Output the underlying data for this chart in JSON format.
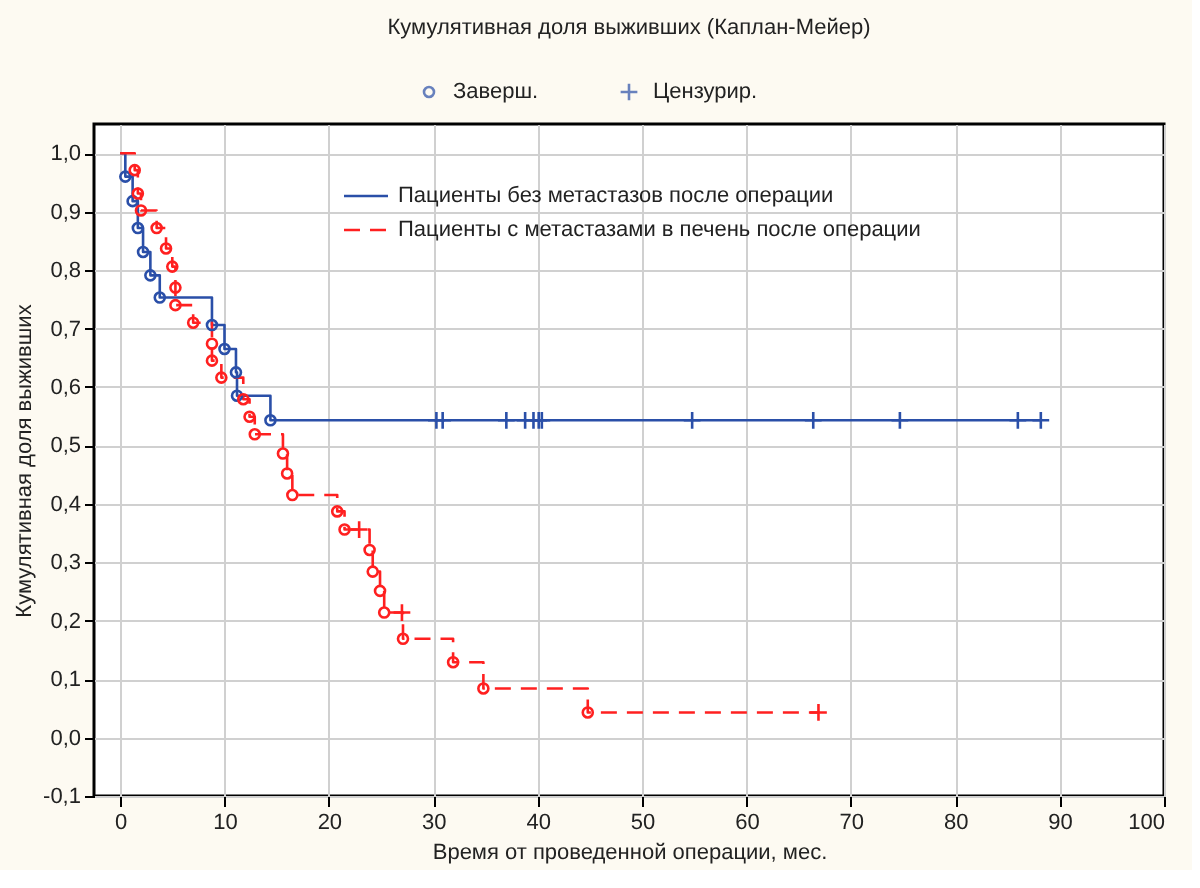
{
  "chart_data": {
    "type": "step",
    "title": "Кумулятивная доля выживших (Каплан-Мейер)",
    "xlabel": "Время от проведенной операции, мес.",
    "ylabel": "Кумулятивная доля выживших",
    "xlim": [
      -2.5,
      100
    ],
    "xticks": [
      0,
      10,
      20,
      30,
      40,
      50,
      60,
      70,
      80,
      90,
      100
    ],
    "ylim": [
      -0.1,
      1.05
    ],
    "yticks": [
      {
        "value": -0.1,
        "label": "-0,1"
      },
      {
        "value": 0,
        "label": "0,0"
      },
      {
        "value": 0.1,
        "label": "0,1"
      },
      {
        "value": 0.2,
        "label": "0,2"
      },
      {
        "value": 0.3,
        "label": "0,3"
      },
      {
        "value": 0.4,
        "label": "0,4"
      },
      {
        "value": 0.5,
        "label": "0,5"
      },
      {
        "value": 0.6,
        "label": "0,6"
      },
      {
        "value": 0.7,
        "label": "0,7"
      },
      {
        "value": 0.8,
        "label": "0,8"
      },
      {
        "value": 0.9,
        "label": "0,9"
      },
      {
        "value": 1.0,
        "label": "1,0"
      }
    ],
    "grid": true,
    "legend": "top",
    "series": [
      {
        "name": "Пациенты без метастазов после операции",
        "color": "#2a4fa8",
        "line_style": "solid",
        "x": [
          0,
          0.5,
          1.2,
          1.7,
          2.2,
          2.9,
          3.8,
          8.8,
          10.0,
          11.1,
          11.2,
          14.4,
          88.2
        ],
        "values": [
          1.0,
          0.96,
          0.918,
          0.872,
          0.831,
          0.791,
          0.753,
          0.706,
          0.665,
          0.625,
          0.585,
          0.543,
          0.543
        ]
      },
      {
        "name": "Пациенты с метастазами в печень после операции",
        "color": "#ff2020",
        "line_style": "dashed",
        "x": [
          0,
          1.4,
          1.7,
          2.0,
          3.5,
          4.4,
          5.0,
          5.3,
          5.3,
          7.0,
          8.8,
          8.8,
          9.7,
          11.8,
          12.4,
          12.9,
          15.6,
          16.0,
          16.5,
          20.8,
          21.5,
          23.9,
          24.2,
          24.9,
          25.3,
          27.1,
          31.9,
          34.8,
          44.8,
          66.9
        ],
        "values": [
          1.0,
          0.971,
          0.931,
          0.902,
          0.872,
          0.837,
          0.806,
          0.77,
          0.74,
          0.71,
          0.674,
          0.645,
          0.616,
          0.579,
          0.549,
          0.519,
          0.486,
          0.452,
          0.415,
          0.387,
          0.356,
          0.321,
          0.284,
          0.251,
          0.214,
          0.169,
          0.129,
          0.084,
          0.043,
          0.043
        ]
      },
      {
        "type": "scatter",
        "name": "Заверш.",
        "color": "#2a4fa8",
        "marker": "circle",
        "x": [
          0.5,
          1.2,
          1.7,
          2.2,
          2.9,
          3.8,
          8.8,
          10.0,
          11.1,
          11.2,
          14.4
        ],
        "values": [
          0.96,
          0.918,
          0.872,
          0.831,
          0.791,
          0.753,
          0.706,
          0.665,
          0.625,
          0.585,
          0.543
        ]
      },
      {
        "type": "scatter",
        "color": "#ff2020",
        "marker": "circle",
        "x": [
          1.4,
          1.7,
          2.0,
          3.5,
          4.4,
          5.0,
          5.3,
          5.3,
          7.0,
          8.8,
          8.8,
          9.7,
          11.8,
          12.4,
          12.9,
          15.6,
          16.0,
          16.5,
          20.8,
          21.5,
          23.9,
          24.2,
          24.9,
          25.3,
          27.1,
          31.9,
          34.8,
          44.8
        ],
        "values": [
          0.971,
          0.931,
          0.902,
          0.872,
          0.837,
          0.806,
          0.77,
          0.74,
          0.71,
          0.674,
          0.645,
          0.616,
          0.579,
          0.549,
          0.519,
          0.486,
          0.452,
          0.415,
          0.387,
          0.356,
          0.321,
          0.284,
          0.251,
          0.214,
          0.169,
          0.129,
          0.084,
          0.043
        ]
      },
      {
        "type": "scatter",
        "name": "Цензурир.",
        "color": "#2a4fa8",
        "marker": "cross",
        "x": [
          30.3,
          30.9,
          37.0,
          38.8,
          39.6,
          40.1,
          40.4,
          54.8,
          66.4,
          74.7,
          86.0,
          88.2
        ],
        "values": [
          0.543,
          0.543,
          0.543,
          0.543,
          0.543,
          0.543,
          0.543,
          0.543,
          0.543,
          0.543,
          0.543,
          0.543
        ]
      },
      {
        "type": "scatter",
        "color": "#ff2020",
        "marker": "cross",
        "x": [
          22.9,
          27.0,
          66.9
        ],
        "values": [
          0.356,
          0.214,
          0.043
        ]
      }
    ]
  }
}
